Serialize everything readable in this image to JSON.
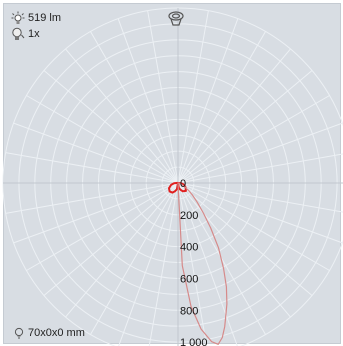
{
  "header": {
    "luminous_flux": "519 lm",
    "lamp_count": "1x",
    "icons": [
      "bulb-rays-icon",
      "lamp-bulb-icon",
      "luminaire-top-icon"
    ]
  },
  "footer": {
    "dimensions": "70x0x0 mm",
    "icon": "dimension-bulb-icon"
  },
  "colors": {
    "background": "#d8dde3",
    "grid": "#ecf0f4",
    "c0_curve": "#e02020",
    "c90_curve": "#d68a8a"
  },
  "chart_data": {
    "type": "polar",
    "title": "",
    "radial_ticks": [
      0,
      200,
      400,
      600,
      800,
      1000
    ],
    "radial_tick_labels": [
      "0",
      "200",
      "400",
      "600",
      "800",
      "1 000"
    ],
    "rmax": 1100,
    "angle_step_deg": 10,
    "grid": true,
    "angle_reference": "0 deg = straight down, positive = clockwise toward right",
    "series": [
      {
        "points": [
          [
            0,
            0
          ],
          [
            10,
            30
          ],
          [
            20,
            45
          ],
          [
            30,
            60
          ],
          [
            45,
            70
          ],
          [
            60,
            55
          ],
          [
            75,
            35
          ],
          [
            85,
            20
          ],
          [
            90,
            5
          ],
          [
            95,
            3
          ],
          [
            180,
            0
          ],
          [
            265,
            5
          ],
          [
            270,
            10
          ],
          [
            275,
            25
          ],
          [
            285,
            45
          ],
          [
            300,
            65
          ],
          [
            315,
            75
          ],
          [
            330,
            70
          ],
          [
            340,
            55
          ],
          [
            350,
            40
          ],
          [
            360,
            0
          ]
        ]
      },
      {
        "points": [
          [
            0,
            0
          ],
          [
            3,
            520
          ],
          [
            6,
            780
          ],
          [
            9,
            930
          ],
          [
            12,
            1020
          ],
          [
            14,
            1045
          ],
          [
            16,
            1010
          ],
          [
            18,
            950
          ],
          [
            20,
            880
          ],
          [
            22,
            820
          ],
          [
            25,
            720
          ],
          [
            28,
            610
          ],
          [
            32,
            480
          ],
          [
            36,
            350
          ],
          [
            40,
            250
          ],
          [
            45,
            170
          ],
          [
            50,
            120
          ],
          [
            55,
            80
          ],
          [
            60,
            50
          ],
          [
            70,
            20
          ],
          [
            80,
            5
          ],
          [
            90,
            0
          ]
        ]
      }
    ]
  }
}
